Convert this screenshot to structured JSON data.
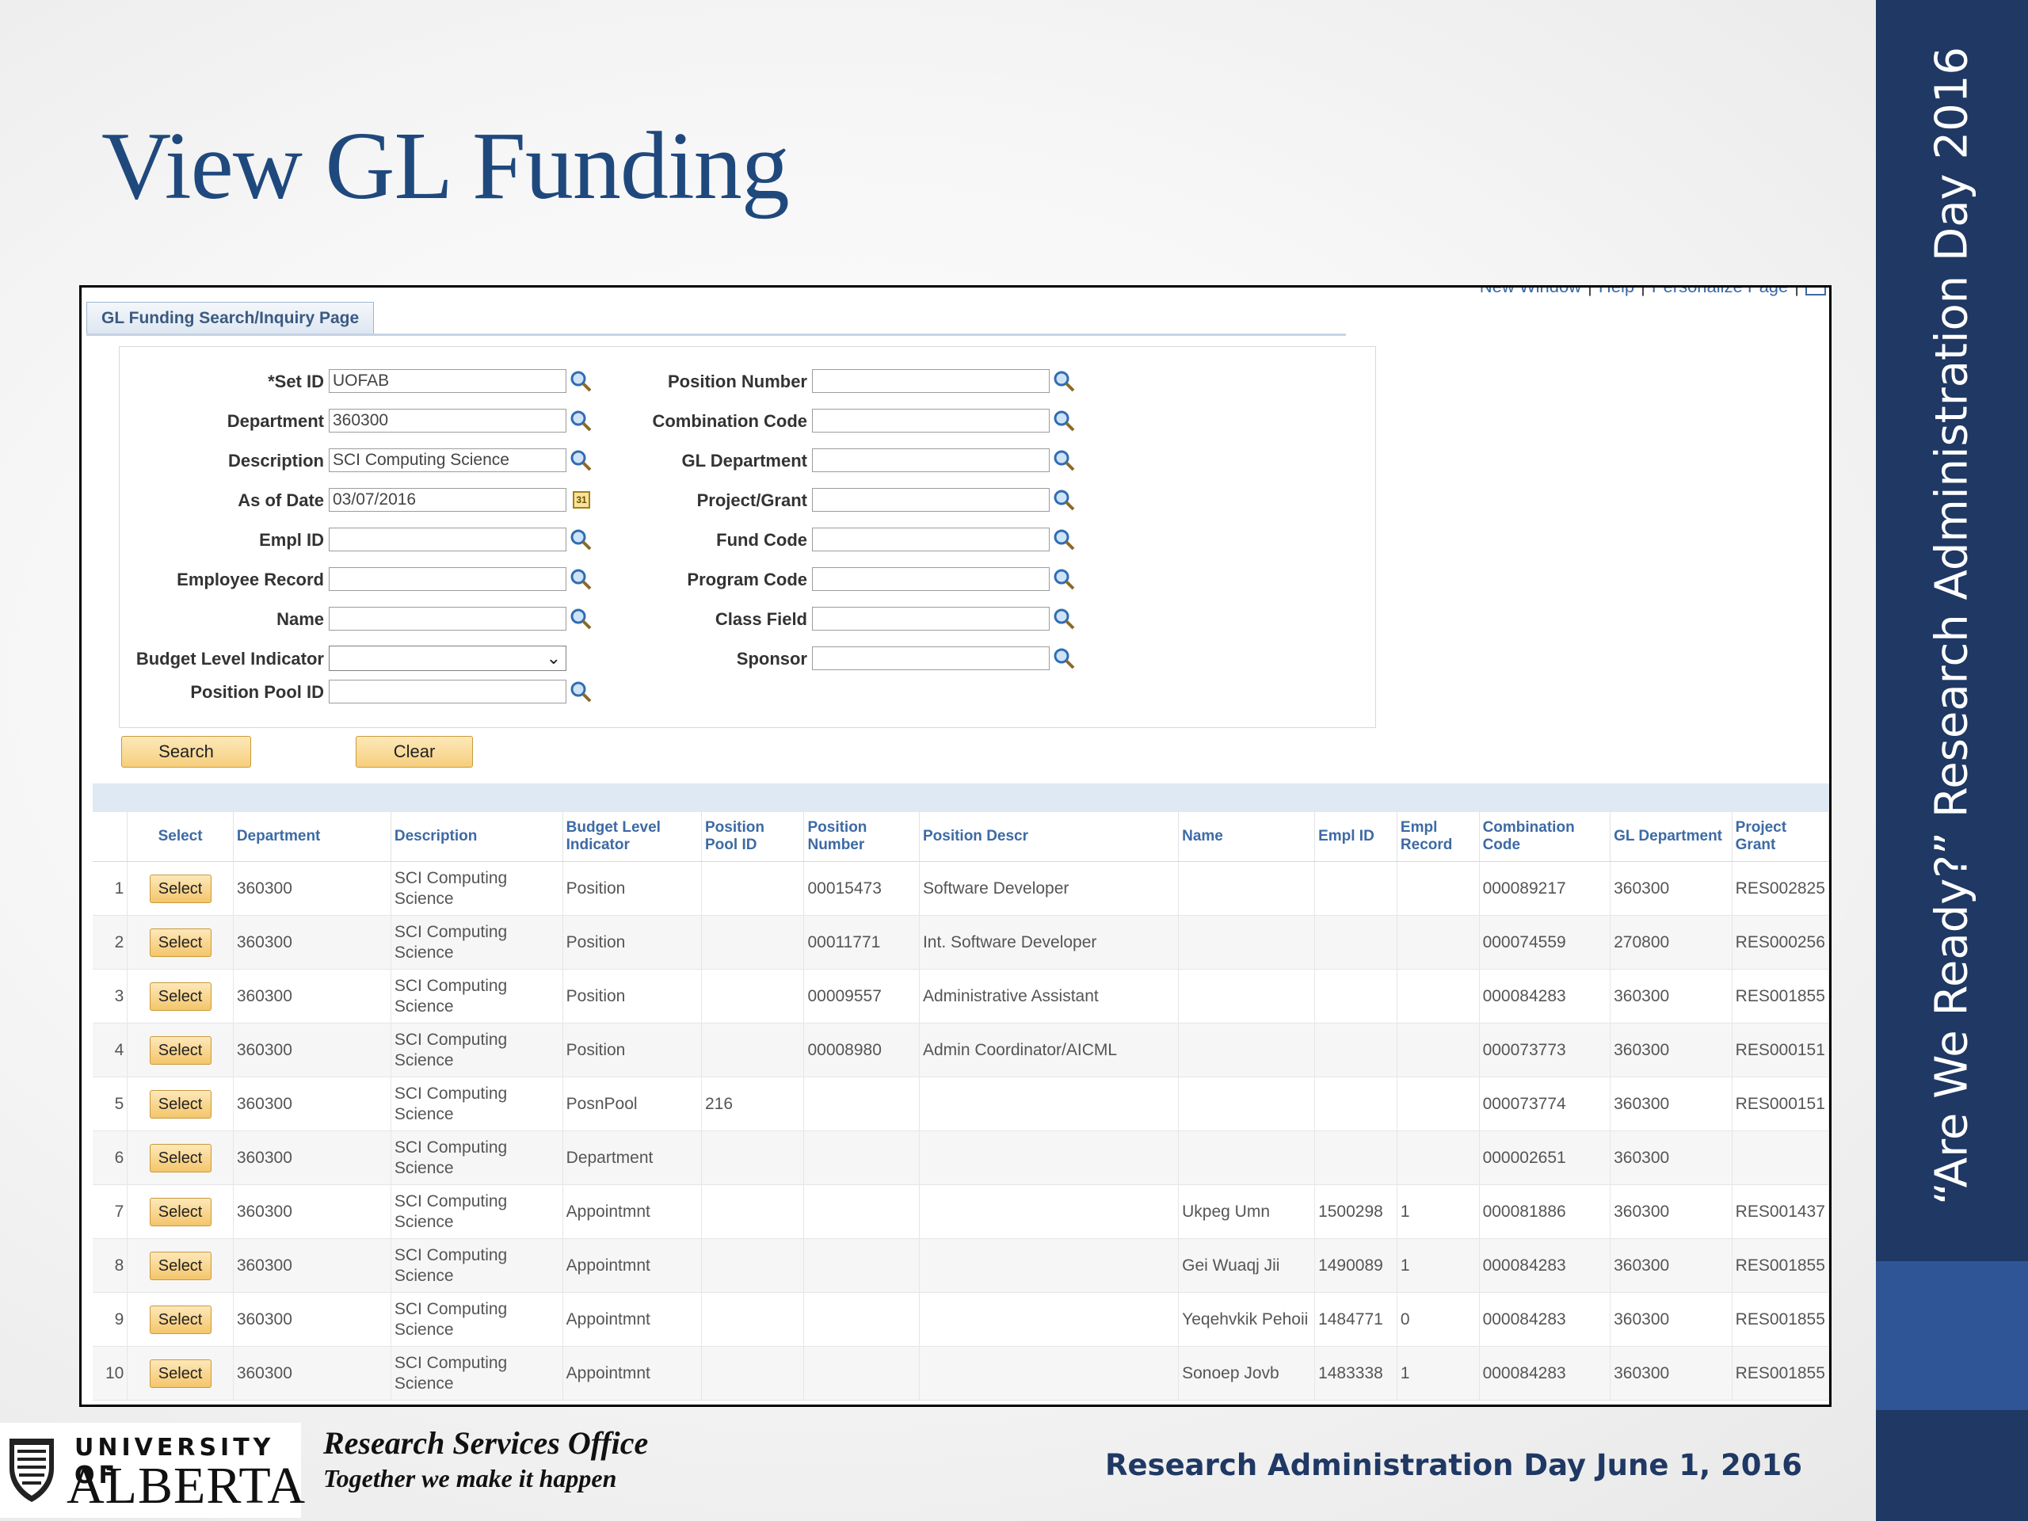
{
  "slide": {
    "title": "View GL Funding",
    "side_banner": "“Are We Ready?” Research Administration Day 2016",
    "footer_date": "Research Administration Day June 1, 2016",
    "office_name": "Research Services Office",
    "office_tagline": "Together we make it happen",
    "logo_top": "UNIVERSITY OF",
    "logo_bottom": "ALBERTA"
  },
  "app": {
    "top_links": [
      "New Window",
      "Help",
      "Personalize Page"
    ],
    "page_tab": "GL Funding Search/Inquiry Page",
    "left_fields": [
      {
        "label": "*Set ID",
        "value": "UOFAB",
        "icon": "search-icon"
      },
      {
        "label": "Department",
        "value": "360300",
        "icon": "search-icon"
      },
      {
        "label": "Description",
        "value": "SCI Computing Science",
        "icon": "search-icon"
      },
      {
        "label": "As of Date",
        "value": "03/07/2016",
        "icon": "calendar-icon"
      },
      {
        "label": "Empl ID",
        "value": "",
        "icon": "search-icon"
      },
      {
        "label": "Employee Record",
        "value": "",
        "icon": "search-icon"
      },
      {
        "label": "Name",
        "value": "",
        "icon": "search-icon"
      },
      {
        "label": "Budget Level Indicator",
        "value": "",
        "icon": "dropdown"
      },
      {
        "label": "Position Pool ID",
        "value": "",
        "icon": "search-icon"
      }
    ],
    "right_fields": [
      {
        "label": "Position Number",
        "value": ""
      },
      {
        "label": "Combination Code",
        "value": ""
      },
      {
        "label": "GL Department",
        "value": ""
      },
      {
        "label": "Project/Grant",
        "value": ""
      },
      {
        "label": "Fund Code",
        "value": ""
      },
      {
        "label": "Program Code",
        "value": ""
      },
      {
        "label": "Class Field",
        "value": ""
      },
      {
        "label": "Sponsor",
        "value": ""
      }
    ],
    "search_button": "Search",
    "clear_button": "Clear",
    "columns": [
      "",
      "Select",
      "Department",
      "Description",
      "Budget Level Indicator",
      "Position Pool ID",
      "Position Number",
      "Position Descr",
      "Name",
      "Empl ID",
      "Empl Record",
      "Combination Code",
      "GL Department",
      "Project Grant"
    ],
    "select_label": "Select",
    "rows": [
      {
        "n": "1",
        "dept": "360300",
        "desc": "SCI Computing Science",
        "bli": "Position",
        "pool": "",
        "posnum": "00015473",
        "posdescr": "Software Developer",
        "name": "",
        "emplid": "",
        "emplrec": "",
        "combo": "000089217",
        "gldept": "360300",
        "proj": "RES002825"
      },
      {
        "n": "2",
        "dept": "360300",
        "desc": "SCI Computing Science",
        "bli": "Position",
        "pool": "",
        "posnum": "00011771",
        "posdescr": "Int. Software Developer",
        "name": "",
        "emplid": "",
        "emplrec": "",
        "combo": "000074559",
        "gldept": "270800",
        "proj": "RES000256"
      },
      {
        "n": "3",
        "dept": "360300",
        "desc": "SCI Computing Science",
        "bli": "Position",
        "pool": "",
        "posnum": "00009557",
        "posdescr": "Administrative Assistant",
        "name": "",
        "emplid": "",
        "emplrec": "",
        "combo": "000084283",
        "gldept": "360300",
        "proj": "RES001855"
      },
      {
        "n": "4",
        "dept": "360300",
        "desc": "SCI Computing Science",
        "bli": "Position",
        "pool": "",
        "posnum": "00008980",
        "posdescr": "Admin Coordinator/AICML",
        "name": "",
        "emplid": "",
        "emplrec": "",
        "combo": "000073773",
        "gldept": "360300",
        "proj": "RES000151"
      },
      {
        "n": "5",
        "dept": "360300",
        "desc": "SCI Computing Science",
        "bli": "PosnPool",
        "pool": "216",
        "posnum": "",
        "posdescr": "",
        "name": "",
        "emplid": "",
        "emplrec": "",
        "combo": "000073774",
        "gldept": "360300",
        "proj": "RES000151"
      },
      {
        "n": "6",
        "dept": "360300",
        "desc": "SCI Computing Science",
        "bli": "Department",
        "pool": "",
        "posnum": "",
        "posdescr": "",
        "name": "",
        "emplid": "",
        "emplrec": "",
        "combo": "000002651",
        "gldept": "360300",
        "proj": ""
      },
      {
        "n": "7",
        "dept": "360300",
        "desc": "SCI Computing Science",
        "bli": "Appointmnt",
        "pool": "",
        "posnum": "",
        "posdescr": "",
        "name": "Ukpeg Umn",
        "emplid": "1500298",
        "emplrec": "1",
        "combo": "000081886",
        "gldept": "360300",
        "proj": "RES001437"
      },
      {
        "n": "8",
        "dept": "360300",
        "desc": "SCI Computing Science",
        "bli": "Appointmnt",
        "pool": "",
        "posnum": "",
        "posdescr": "",
        "name": "Gei Wuaqj Jii",
        "emplid": "1490089",
        "emplrec": "1",
        "combo": "000084283",
        "gldept": "360300",
        "proj": "RES001855"
      },
      {
        "n": "9",
        "dept": "360300",
        "desc": "SCI Computing Science",
        "bli": "Appointmnt",
        "pool": "",
        "posnum": "",
        "posdescr": "",
        "name": "Yeqehvkik Pehoii",
        "emplid": "1484771",
        "emplrec": "0",
        "combo": "000084283",
        "gldept": "360300",
        "proj": "RES001855"
      },
      {
        "n": "10",
        "dept": "360300",
        "desc": "SCI Computing Science",
        "bli": "Appointmnt",
        "pool": "",
        "posnum": "",
        "posdescr": "",
        "name": "Sonoep Jovb",
        "emplid": "1483338",
        "emplrec": "1",
        "combo": "000084283",
        "gldept": "360300",
        "proj": "RES001855"
      }
    ]
  },
  "colors": {
    "title": "#1f497d",
    "band": "#1f3864",
    "link": "#3d6aa5",
    "button": "#f6cf7e"
  }
}
